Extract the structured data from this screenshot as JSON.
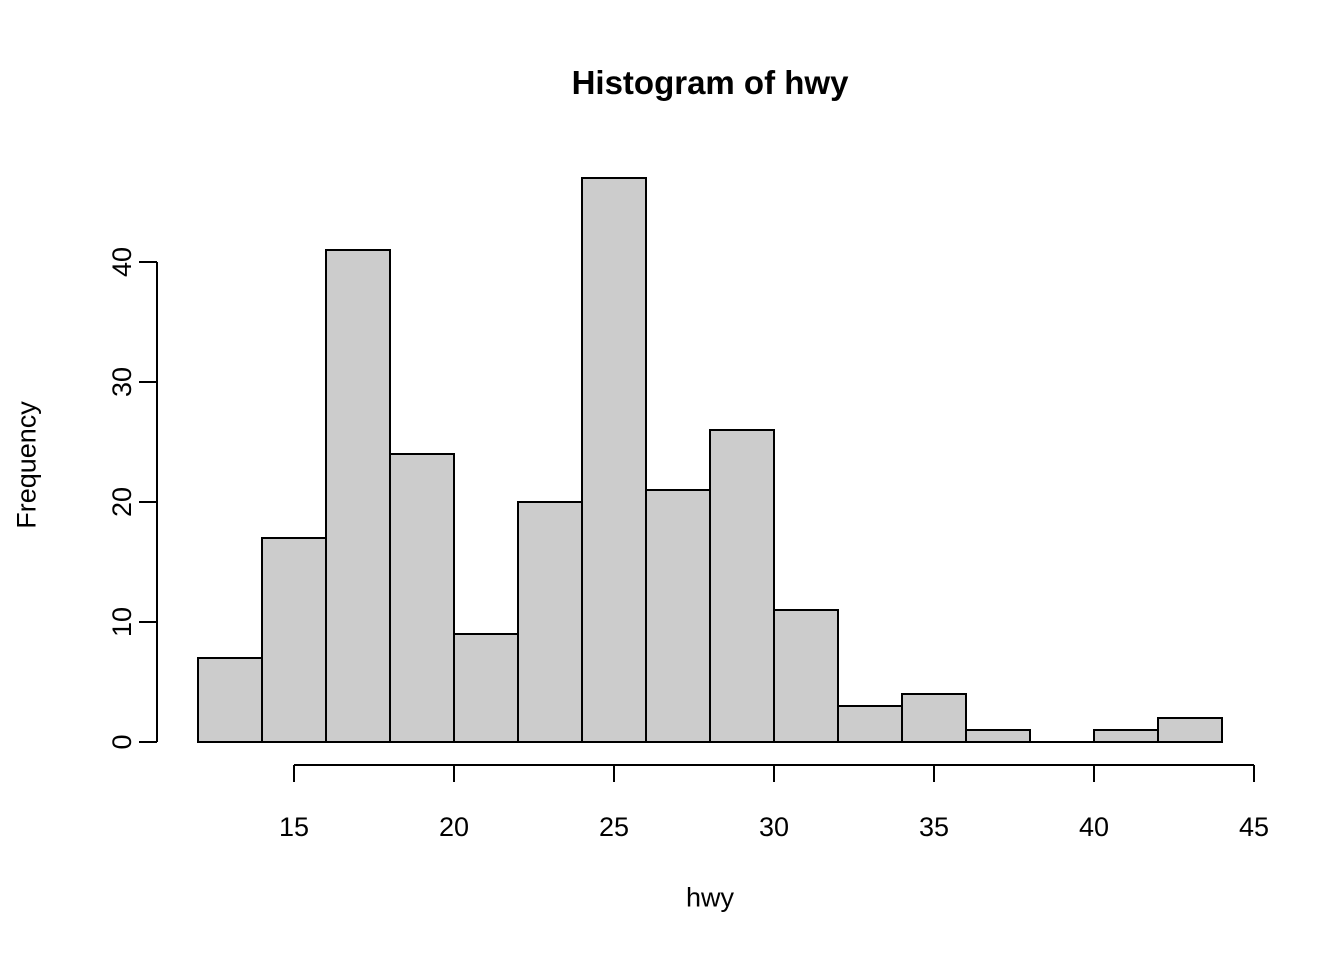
{
  "chart_data": {
    "type": "bar",
    "subtype": "histogram",
    "title": "Histogram of hwy",
    "xlabel": "hwy",
    "ylabel": "Frequency",
    "bin_edges": [
      12,
      14,
      16,
      18,
      20,
      22,
      24,
      26,
      28,
      30,
      32,
      34,
      36,
      38,
      40,
      42,
      44
    ],
    "counts": [
      7,
      17,
      41,
      24,
      9,
      20,
      47,
      21,
      26,
      11,
      3,
      4,
      1,
      0,
      1,
      2
    ],
    "x_ticks": [
      15,
      20,
      25,
      30,
      35,
      40,
      45
    ],
    "y_ticks": [
      0,
      10,
      20,
      30,
      40
    ],
    "xlim": [
      12,
      44
    ],
    "ylim": [
      0,
      47
    ],
    "grid": false,
    "legend": null,
    "bar_fill": "#CCCCCC",
    "bar_stroke": "#000000",
    "axis_color": "#000000",
    "text_color": "#000000",
    "background": "#FFFFFF"
  }
}
